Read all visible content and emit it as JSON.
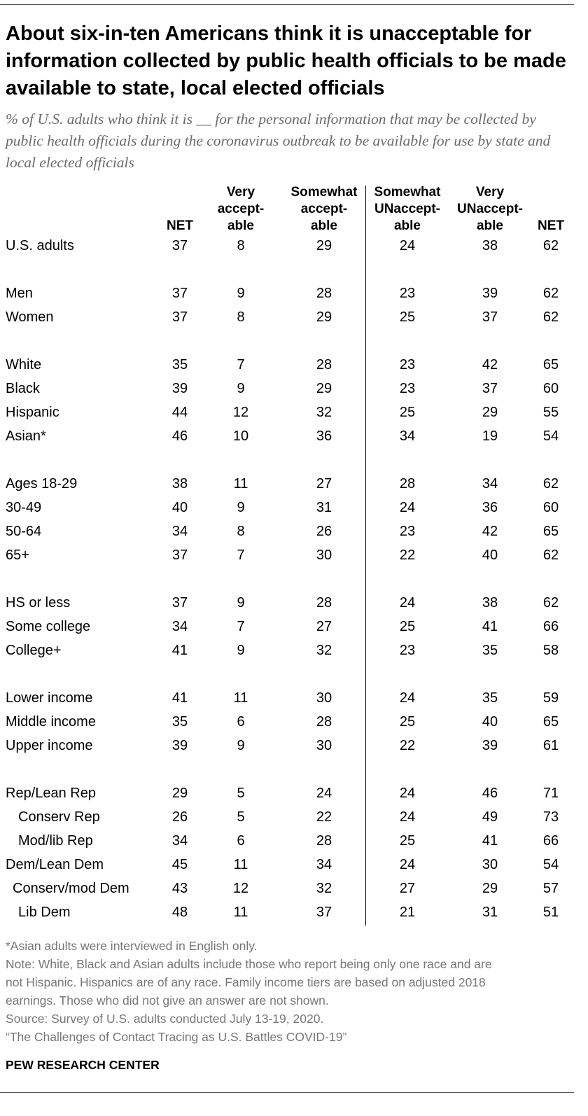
{
  "title": "About six-in-ten Americans think it is unacceptable for information collected by public health officials to be made available to state, local elected officials",
  "subtitle": "% of U.S. adults who think it is __ for the personal information that may be collected by public health officials during the coronavirus outbreak to be available for use by state and local elected officials",
  "columns": [
    "NET",
    "Very accept- able",
    "Somewhat accept- able",
    "Somewhat UNaccept- able",
    "Very UNaccept- able",
    "NET"
  ],
  "chart_data": {
    "type": "table",
    "columns": [
      "NET",
      "Very accept- able",
      "Somewhat accept- able",
      "Somewhat UNaccept- able",
      "Very UNaccept- able",
      "NET"
    ],
    "rows": [
      {
        "label": "U.S. adults",
        "indent": 0,
        "values": [
          37,
          8,
          29,
          24,
          38,
          62
        ]
      },
      {
        "label": "Men",
        "indent": 0,
        "values": [
          37,
          9,
          28,
          23,
          39,
          62
        ]
      },
      {
        "label": "Women",
        "indent": 0,
        "values": [
          37,
          8,
          29,
          25,
          37,
          62
        ]
      },
      {
        "label": "White",
        "indent": 0,
        "values": [
          35,
          7,
          28,
          23,
          42,
          65
        ]
      },
      {
        "label": "Black",
        "indent": 0,
        "values": [
          39,
          9,
          29,
          23,
          37,
          60
        ]
      },
      {
        "label": "Hispanic",
        "indent": 0,
        "values": [
          44,
          12,
          32,
          25,
          29,
          55
        ]
      },
      {
        "label": "Asian*",
        "indent": 0,
        "values": [
          46,
          10,
          36,
          34,
          19,
          54
        ]
      },
      {
        "label": "Ages 18-29",
        "indent": 0,
        "values": [
          38,
          11,
          27,
          28,
          34,
          62
        ]
      },
      {
        "label": "30-49",
        "indent": 0,
        "values": [
          40,
          9,
          31,
          24,
          36,
          60
        ]
      },
      {
        "label": "50-64",
        "indent": 0,
        "values": [
          34,
          8,
          26,
          23,
          42,
          65
        ]
      },
      {
        "label": "65+",
        "indent": 0,
        "values": [
          37,
          7,
          30,
          22,
          40,
          62
        ]
      },
      {
        "label": "HS or less",
        "indent": 0,
        "values": [
          37,
          9,
          28,
          24,
          38,
          62
        ]
      },
      {
        "label": "Some college",
        "indent": 0,
        "values": [
          34,
          7,
          27,
          25,
          41,
          66
        ]
      },
      {
        "label": "College+",
        "indent": 0,
        "values": [
          41,
          9,
          32,
          23,
          35,
          58
        ]
      },
      {
        "label": "Lower income",
        "indent": 0,
        "values": [
          41,
          11,
          30,
          24,
          35,
          59
        ]
      },
      {
        "label": "Middle income",
        "indent": 0,
        "values": [
          35,
          6,
          28,
          25,
          40,
          65
        ]
      },
      {
        "label": "Upper income",
        "indent": 0,
        "values": [
          39,
          9,
          30,
          22,
          39,
          61
        ]
      },
      {
        "label": "Rep/Lean Rep",
        "indent": 0,
        "values": [
          29,
          5,
          24,
          24,
          46,
          71
        ]
      },
      {
        "label": "Conserv Rep",
        "indent": 2,
        "values": [
          26,
          5,
          22,
          24,
          49,
          73
        ]
      },
      {
        "label": "Mod/lib Rep",
        "indent": 2,
        "values": [
          34,
          6,
          28,
          25,
          41,
          66
        ]
      },
      {
        "label": "Dem/Lean Dem",
        "indent": 0,
        "values": [
          45,
          11,
          34,
          24,
          30,
          54
        ]
      },
      {
        "label": "Conserv/mod Dem",
        "indent": 1,
        "values": [
          43,
          12,
          32,
          27,
          29,
          57
        ]
      },
      {
        "label": "Lib Dem",
        "indent": 2,
        "values": [
          48,
          11,
          37,
          21,
          31,
          51
        ]
      }
    ]
  },
  "notes": [
    "*Asian adults were interviewed in English only.",
    "Note: White, Black and Asian adults include those who report being only one race and are",
    "not Hispanic. Hispanics are of any race. Family income tiers are based on adjusted 2018",
    "earnings. Those who did not give an answer are not shown.",
    "Source: Survey of U.S. adults conducted July 13-19, 2020.",
    "“The Challenges of Contact Tracing as U.S. Battles COVID-19”"
  ],
  "source_org": "PEW RESEARCH CENTER"
}
